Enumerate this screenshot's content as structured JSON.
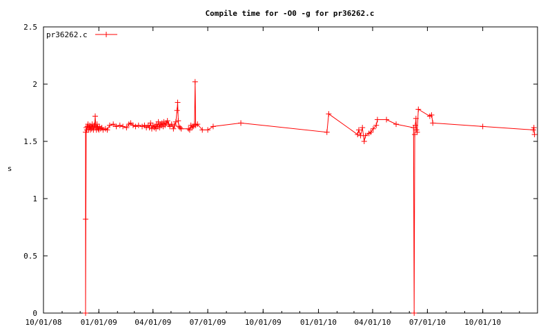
{
  "chart_data": {
    "type": "line",
    "title": "Compile time for -O0 -g for pr36262.c",
    "xlabel": "",
    "ylabel": "s",
    "xlim": [
      "2008-10-01",
      "2010-12-31"
    ],
    "ylim": [
      0,
      2.5
    ],
    "x_ticks": [
      "10/01/08",
      "01/01/09",
      "04/01/09",
      "07/01/09",
      "10/01/09",
      "01/01/10",
      "04/01/10",
      "07/01/10",
      "10/01/10"
    ],
    "y_ticks": [
      "0",
      "0.5",
      "1",
      "1.5",
      "2",
      "2.5"
    ],
    "grid": false,
    "legend_position": "top-left",
    "series": [
      {
        "name": "pr36262.c",
        "color": "#ff0000",
        "marker": "plus",
        "points": [
          [
            "2008-12-10",
            1.58
          ],
          [
            "2008-12-10",
            0.82
          ],
          [
            "2008-12-10",
            0.0
          ],
          [
            "2008-12-11",
            1.62
          ],
          [
            "2008-12-12",
            1.6
          ],
          [
            "2008-12-13",
            1.63
          ],
          [
            "2008-12-14",
            1.65
          ],
          [
            "2008-12-15",
            1.6
          ],
          [
            "2008-12-16",
            1.62
          ],
          [
            "2008-12-17",
            1.64
          ],
          [
            "2008-12-18",
            1.6
          ],
          [
            "2008-12-19",
            1.63
          ],
          [
            "2008-12-20",
            1.61
          ],
          [
            "2008-12-21",
            1.65
          ],
          [
            "2008-12-22",
            1.62
          ],
          [
            "2008-12-23",
            1.6
          ],
          [
            "2008-12-24",
            1.64
          ],
          [
            "2008-12-25",
            1.63
          ],
          [
            "2008-12-26",
            1.72
          ],
          [
            "2008-12-27",
            1.62
          ],
          [
            "2008-12-28",
            1.6
          ],
          [
            "2008-12-29",
            1.65
          ],
          [
            "2008-12-30",
            1.62
          ],
          [
            "2008-12-31",
            1.61
          ],
          [
            "2009-01-01",
            1.6
          ],
          [
            "2009-01-02",
            1.63
          ],
          [
            "2009-01-04",
            1.61
          ],
          [
            "2009-01-06",
            1.62
          ],
          [
            "2009-01-08",
            1.6
          ],
          [
            "2009-01-12",
            1.61
          ],
          [
            "2009-01-15",
            1.6
          ],
          [
            "2009-01-19",
            1.64
          ],
          [
            "2009-01-25",
            1.65
          ],
          [
            "2009-01-30",
            1.63
          ],
          [
            "2009-02-05",
            1.64
          ],
          [
            "2009-02-10",
            1.63
          ],
          [
            "2009-02-16",
            1.62
          ],
          [
            "2009-02-20",
            1.65
          ],
          [
            "2009-02-23",
            1.66
          ],
          [
            "2009-02-27",
            1.64
          ],
          [
            "2009-03-03",
            1.63
          ],
          [
            "2009-03-08",
            1.64
          ],
          [
            "2009-03-14",
            1.63
          ],
          [
            "2009-03-18",
            1.64
          ],
          [
            "2009-03-21",
            1.62
          ],
          [
            "2009-03-24",
            1.64
          ],
          [
            "2009-03-26",
            1.62
          ],
          [
            "2009-03-28",
            1.66
          ],
          [
            "2009-03-30",
            1.61
          ],
          [
            "2009-04-01",
            1.64
          ],
          [
            "2009-04-03",
            1.62
          ],
          [
            "2009-04-05",
            1.63
          ],
          [
            "2009-04-06",
            1.61
          ],
          [
            "2009-04-07",
            1.65
          ],
          [
            "2009-04-09",
            1.63
          ],
          [
            "2009-04-10",
            1.67
          ],
          [
            "2009-04-12",
            1.62
          ],
          [
            "2009-04-13",
            1.65
          ],
          [
            "2009-04-15",
            1.64
          ],
          [
            "2009-04-16",
            1.66
          ],
          [
            "2009-04-18",
            1.63
          ],
          [
            "2009-04-19",
            1.67
          ],
          [
            "2009-04-21",
            1.64
          ],
          [
            "2009-04-23",
            1.66
          ],
          [
            "2009-04-25",
            1.68
          ],
          [
            "2009-04-27",
            1.65
          ],
          [
            "2009-04-29",
            1.63
          ],
          [
            "2009-05-02",
            1.65
          ],
          [
            "2009-05-05",
            1.61
          ],
          [
            "2009-05-07",
            1.64
          ],
          [
            "2009-05-09",
            1.67
          ],
          [
            "2009-05-11",
            1.77
          ],
          [
            "2009-05-12",
            1.84
          ],
          [
            "2009-05-13",
            1.68
          ],
          [
            "2009-05-14",
            1.63
          ],
          [
            "2009-05-16",
            1.62
          ],
          [
            "2009-05-18",
            1.61
          ],
          [
            "2009-05-30",
            1.61
          ],
          [
            "2009-06-01",
            1.6
          ],
          [
            "2009-06-03",
            1.64
          ],
          [
            "2009-06-05",
            1.62
          ],
          [
            "2009-06-07",
            1.63
          ],
          [
            "2009-06-09",
            1.65
          ],
          [
            "2009-06-10",
            2.02
          ],
          [
            "2009-06-11",
            1.64
          ],
          [
            "2009-06-14",
            1.65
          ],
          [
            "2009-06-22",
            1.6
          ],
          [
            "2009-07-01",
            1.6
          ],
          [
            "2009-07-10",
            1.63
          ],
          [
            "2009-08-25",
            1.66
          ],
          [
            "2010-01-15",
            1.58
          ],
          [
            "2010-01-18",
            1.74
          ],
          [
            "2010-03-07",
            1.56
          ],
          [
            "2010-03-09",
            1.6
          ],
          [
            "2010-03-12",
            1.55
          ],
          [
            "2010-03-15",
            1.62
          ],
          [
            "2010-03-18",
            1.5
          ],
          [
            "2010-03-20",
            1.55
          ],
          [
            "2010-03-26",
            1.57
          ],
          [
            "2010-03-29",
            1.58
          ],
          [
            "2010-04-02",
            1.61
          ],
          [
            "2010-04-07",
            1.64
          ],
          [
            "2010-04-09",
            1.69
          ],
          [
            "2010-04-24",
            1.69
          ],
          [
            "2010-05-10",
            1.65
          ],
          [
            "2010-06-08",
            1.62
          ],
          [
            "2010-06-09",
            0.0
          ],
          [
            "2010-06-10",
            1.56
          ],
          [
            "2010-06-11",
            1.64
          ],
          [
            "2010-06-12",
            1.7
          ],
          [
            "2010-06-13",
            1.6
          ],
          [
            "2010-06-14",
            1.58
          ],
          [
            "2010-06-16",
            1.78
          ],
          [
            "2010-07-05",
            1.72
          ],
          [
            "2010-07-08",
            1.73
          ],
          [
            "2010-07-10",
            1.66
          ],
          [
            "2010-10-01",
            1.63
          ],
          [
            "2010-12-24",
            1.6
          ],
          [
            "2010-12-25",
            1.62
          ],
          [
            "2010-12-26",
            1.56
          ]
        ]
      }
    ]
  }
}
